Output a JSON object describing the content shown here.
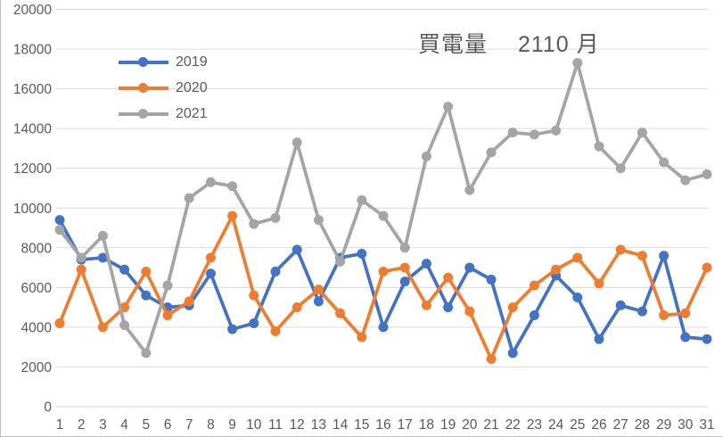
{
  "chart_data": {
    "type": "line",
    "title": "買電量　 2110 月",
    "xlabel": "",
    "ylabel": "",
    "categories": [
      1,
      2,
      3,
      4,
      5,
      6,
      7,
      8,
      9,
      10,
      11,
      12,
      13,
      14,
      15,
      16,
      17,
      18,
      19,
      20,
      21,
      22,
      23,
      24,
      25,
      26,
      27,
      28,
      29,
      30,
      31
    ],
    "x_tick_labels": [
      "1",
      "2",
      "3",
      "4",
      "5",
      "6",
      "7",
      "8",
      "9",
      "10",
      "11",
      "12",
      "13",
      "14",
      "15",
      "16",
      "17",
      "18",
      "19",
      "20",
      "21",
      "22",
      "23",
      "24",
      "25",
      "26",
      "27",
      "28",
      "29",
      "30",
      "31"
    ],
    "y_ticks": [
      0,
      2000,
      4000,
      6000,
      8000,
      10000,
      12000,
      14000,
      16000,
      18000,
      20000
    ],
    "y_tick_labels": [
      "0",
      "2000",
      "4000",
      "6000",
      "8000",
      "10000",
      "12000",
      "14000",
      "16000",
      "18000",
      "20000"
    ],
    "ylim": [
      0,
      20000
    ],
    "grid": true,
    "gridline_color": "#d9d9d9",
    "axis_label_color": "#595959",
    "legend_position": "upper-left-inside",
    "series": [
      {
        "name": "2019",
        "color": "#4472C4",
        "values": [
          9400,
          7400,
          7500,
          6900,
          5600,
          5000,
          5100,
          6700,
          3900,
          4200,
          6800,
          7900,
          5300,
          7500,
          7700,
          4000,
          6300,
          7200,
          5000,
          7000,
          6400,
          2700,
          4600,
          6600,
          5500,
          3400,
          5100,
          4800,
          7600,
          3500,
          3400
        ]
      },
      {
        "name": "2020",
        "color": "#ED7D31",
        "values": [
          4200,
          6900,
          4000,
          5000,
          6800,
          4600,
          5300,
          7500,
          9600,
          5600,
          3800,
          5000,
          5900,
          4700,
          3500,
          6800,
          7000,
          5100,
          6500,
          4800,
          2400,
          5000,
          6100,
          6900,
          7500,
          6200,
          7900,
          7600,
          4600,
          4700,
          7000
        ]
      },
      {
        "name": "2021",
        "color": "#A5A5A5",
        "values": [
          8900,
          7500,
          8600,
          4100,
          2700,
          6100,
          10500,
          11300,
          11100,
          9200,
          9500,
          13300,
          9400,
          7300,
          10400,
          9600,
          8000,
          12600,
          15100,
          10900,
          12800,
          13800,
          13700,
          13900,
          17300,
          13100,
          12000,
          13800,
          12300,
          11400,
          11700
        ]
      }
    ]
  }
}
